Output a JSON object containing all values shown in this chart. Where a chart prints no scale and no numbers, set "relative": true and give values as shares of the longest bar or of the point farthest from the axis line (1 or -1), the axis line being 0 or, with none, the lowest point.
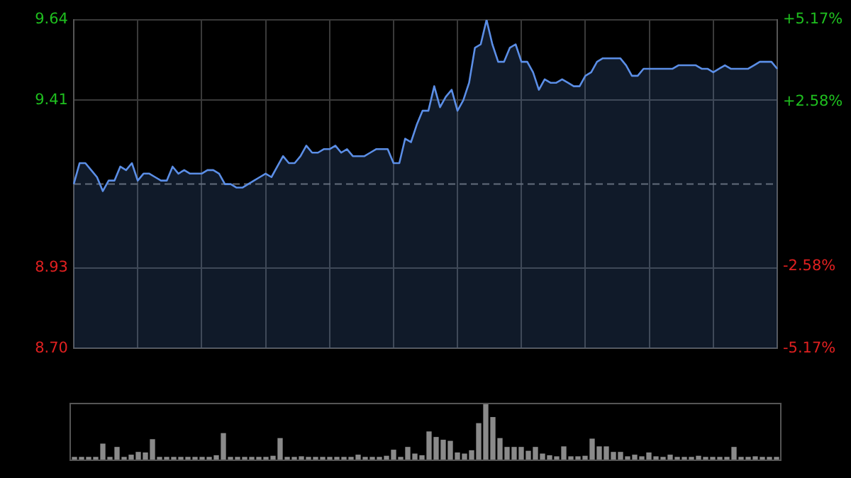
{
  "chart_data": [
    {
      "type": "area",
      "categories": [
        null,
        null,
        null,
        null,
        null,
        null,
        null,
        null,
        null,
        null,
        null,
        null,
        null,
        null,
        null,
        null,
        null,
        null,
        null,
        null,
        null,
        null,
        null,
        null,
        null,
        null,
        null,
        null,
        null,
        null,
        null,
        null,
        null,
        null,
        null,
        null,
        null,
        null,
        null,
        null,
        null,
        null,
        null,
        null,
        null,
        null,
        null,
        null,
        null,
        null,
        null,
        null,
        null,
        null,
        null,
        null,
        null,
        null,
        null,
        null,
        null,
        null,
        null,
        null,
        null,
        null,
        null,
        null,
        null,
        null,
        null,
        null,
        null,
        null,
        null,
        null,
        null,
        null,
        null,
        null,
        null,
        null,
        null,
        null,
        null,
        null,
        null,
        null,
        null,
        null,
        null,
        null,
        null,
        null,
        null,
        null,
        null,
        null,
        null,
        null,
        null,
        null,
        null,
        null,
        null,
        null,
        null,
        null,
        null,
        null,
        null,
        null,
        null,
        null,
        null,
        null,
        null,
        null,
        null,
        null,
        null,
        null
      ],
      "ylim": [
        8.7,
        9.64
      ],
      "yticks": [
        9.64,
        9.41,
        8.93,
        {
          "value": 8.7,
          "label": "8.70"
        }
      ],
      "y2lim": [
        -5.17,
        5.17
      ],
      "y2ticks": [
        {
          "value": 5.17,
          "label": "+5.17%"
        },
        {
          "value": 2.58,
          "label": "+2.58%"
        },
        {
          "value": -2.58,
          "label": "-2.58%"
        },
        {
          "value": -5.17,
          "label": "-5.17%"
        }
      ],
      "grid": true,
      "legend": false,
      "ref_lines": [
        {
          "axis": "y",
          "value": 9.17,
          "line_style": "dashed",
          "color": "#666666"
        }
      ],
      "series": [
        {
          "color": "#5b8ee6",
          "values": [
            9.17,
            9.23,
            9.23,
            9.21,
            9.19,
            9.15,
            9.18,
            9.18,
            9.22,
            9.21,
            9.23,
            9.18,
            9.2,
            9.2,
            9.19,
            9.18,
            9.18,
            9.22,
            9.2,
            9.21,
            9.2,
            9.2,
            9.2,
            9.21,
            9.21,
            9.2,
            9.17,
            9.17,
            9.16,
            9.16,
            9.17,
            9.18,
            9.19,
            9.2,
            9.19,
            9.22,
            9.25,
            9.23,
            9.23,
            9.25,
            9.28,
            9.26,
            9.26,
            9.27,
            9.27,
            9.28,
            9.26,
            9.27,
            9.25,
            9.25,
            9.25,
            9.26,
            9.27,
            9.27,
            9.27,
            9.23,
            9.23,
            9.3,
            9.29,
            9.34,
            9.38,
            9.38,
            9.45,
            9.39,
            9.42,
            9.44,
            9.38,
            9.41,
            9.46,
            9.56,
            9.57,
            9.64,
            9.57,
            9.52,
            9.52,
            9.56,
            9.57,
            9.52,
            9.52,
            9.49,
            9.44,
            9.47,
            9.46,
            9.46,
            9.47,
            9.46,
            9.45,
            9.45,
            9.48,
            9.49,
            9.52,
            9.53,
            9.53,
            9.53,
            9.53,
            9.51,
            9.48,
            9.48,
            9.5,
            9.5,
            9.5,
            9.5,
            9.5,
            9.5,
            9.51,
            9.51,
            9.51,
            9.51,
            9.5,
            9.5,
            9.49,
            9.5,
            9.51,
            9.5,
            9.5,
            9.5,
            9.5,
            9.51,
            9.52,
            9.52,
            9.52,
            9.5
          ]
        }
      ]
    },
    {
      "type": "bar",
      "relative": true,
      "legend": false,
      "categories": [
        null,
        null,
        null,
        null,
        null,
        null,
        null,
        null,
        null,
        null,
        null,
        null,
        null,
        null,
        null,
        null,
        null,
        null,
        null,
        null,
        null,
        null,
        null,
        null,
        null,
        null,
        null,
        null,
        null,
        null,
        null,
        null,
        null,
        null,
        null,
        null,
        null,
        null,
        null,
        null,
        null,
        null,
        null,
        null,
        null,
        null,
        null,
        null,
        null,
        null,
        null,
        null,
        null,
        null,
        null,
        null,
        null,
        null,
        null,
        null,
        null,
        null,
        null,
        null,
        null,
        null,
        null,
        null,
        null,
        null,
        null,
        null,
        null,
        null,
        null,
        null,
        null,
        null,
        null,
        null,
        null,
        null,
        null,
        null,
        null,
        null,
        null,
        null,
        null,
        null,
        null,
        null,
        null,
        null,
        null,
        null,
        null,
        null,
        null,
        null
      ],
      "color": "#8a8a8a",
      "values": [
        0.04,
        0.04,
        0.04,
        0.04,
        0.28,
        0.04,
        0.22,
        0.04,
        0.08,
        0.13,
        0.12,
        0.36,
        0.04,
        0.04,
        0.04,
        0.04,
        0.04,
        0.04,
        0.04,
        0.04,
        0.07,
        0.47,
        0.04,
        0.04,
        0.04,
        0.04,
        0.04,
        0.04,
        0.06,
        0.38,
        0.04,
        0.04,
        0.05,
        0.04,
        0.04,
        0.04,
        0.04,
        0.04,
        0.04,
        0.04,
        0.08,
        0.04,
        0.04,
        0.04,
        0.06,
        0.17,
        0.04,
        0.22,
        0.1,
        0.07,
        0.5,
        0.4,
        0.35,
        0.33,
        0.12,
        0.1,
        0.16,
        0.65,
        1,
        0.76,
        0.38,
        0.22,
        0.22,
        0.22,
        0.15,
        0.22,
        0.1,
        0.07,
        0.05,
        0.23,
        0.05,
        0.05,
        0.06,
        0.37,
        0.23,
        0.23,
        0.13,
        0.13,
        0.05,
        0.08,
        0.05,
        0.12,
        0.05,
        0.04,
        0.08,
        0.04,
        0.04,
        0.04,
        0.06,
        0.04,
        0.04,
        0.04,
        0.04,
        0.22,
        0.04,
        0.04,
        0.05,
        0.04,
        0.04,
        0.04
      ]
    }
  ]
}
